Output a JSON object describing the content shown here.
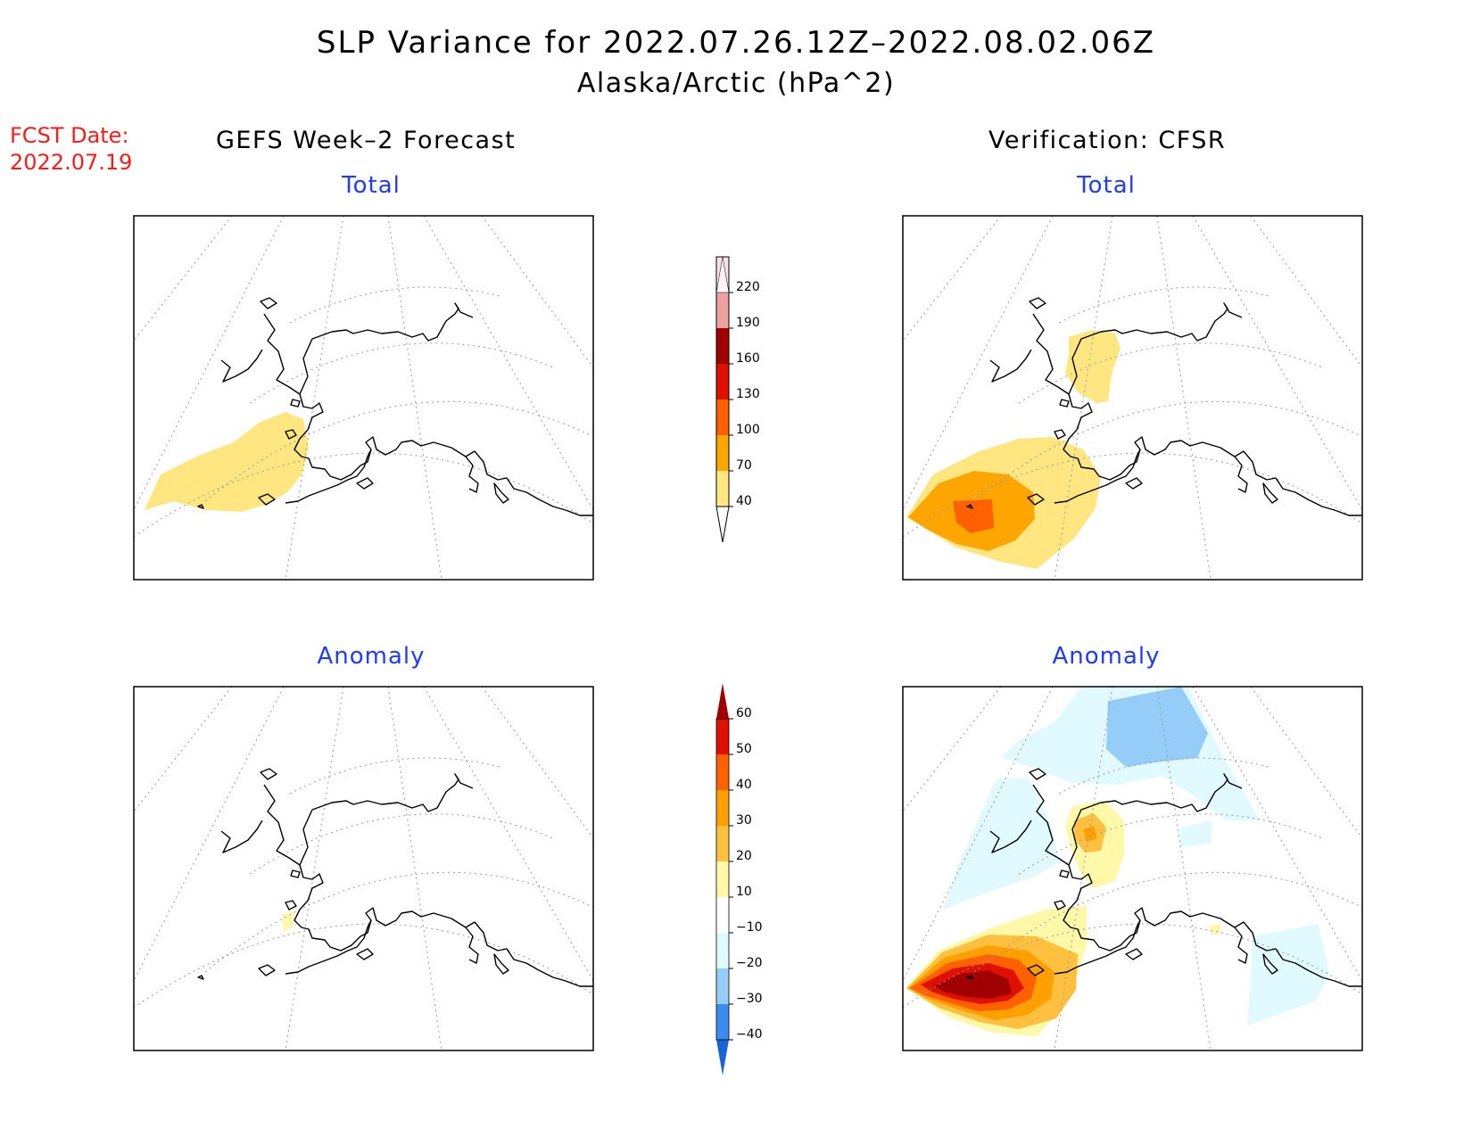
{
  "header": {
    "title": "SLP Variance for 2022.07.26.12Z–2022.08.02.06Z",
    "subtitle": "Alaska/Arctic (hPa^2)",
    "fcst_label": "FCST Date:",
    "fcst_date": "2022.07.19"
  },
  "columns": {
    "forecast": "GEFS Week–2 Forecast",
    "verification": "Verification: CFSR"
  },
  "panels": {
    "top_left": "Total",
    "top_right": "Total",
    "bottom_left": "Anomaly",
    "bottom_right": "Anomaly"
  },
  "colorbars": {
    "total": {
      "labels": [
        "40",
        "70",
        "100",
        "130",
        "160",
        "190",
        "220"
      ],
      "colors": [
        "#ffe680",
        "#ffa500",
        "#ff6000",
        "#e01000",
        "#a00000",
        "#f0a0a0",
        "#fde0e0"
      ],
      "extend": [
        "#ffffff",
        "#fff4f4"
      ]
    },
    "anomaly": {
      "labels": [
        "−40",
        "−30",
        "−20",
        "−10",
        "10",
        "20",
        "30",
        "40",
        "50",
        "60"
      ],
      "colors": [
        "#1a64d8",
        "#3c8cf0",
        "#96cdf8",
        "#e0faff",
        "#ffffff",
        "#fff8a8",
        "#ffc040",
        "#ffa000",
        "#ff6000",
        "#e01000",
        "#a00000"
      ]
    }
  },
  "colors": {
    "title": "#000000",
    "fcst": "#ff1a1a",
    "panel_label": "#1f3bff"
  }
}
